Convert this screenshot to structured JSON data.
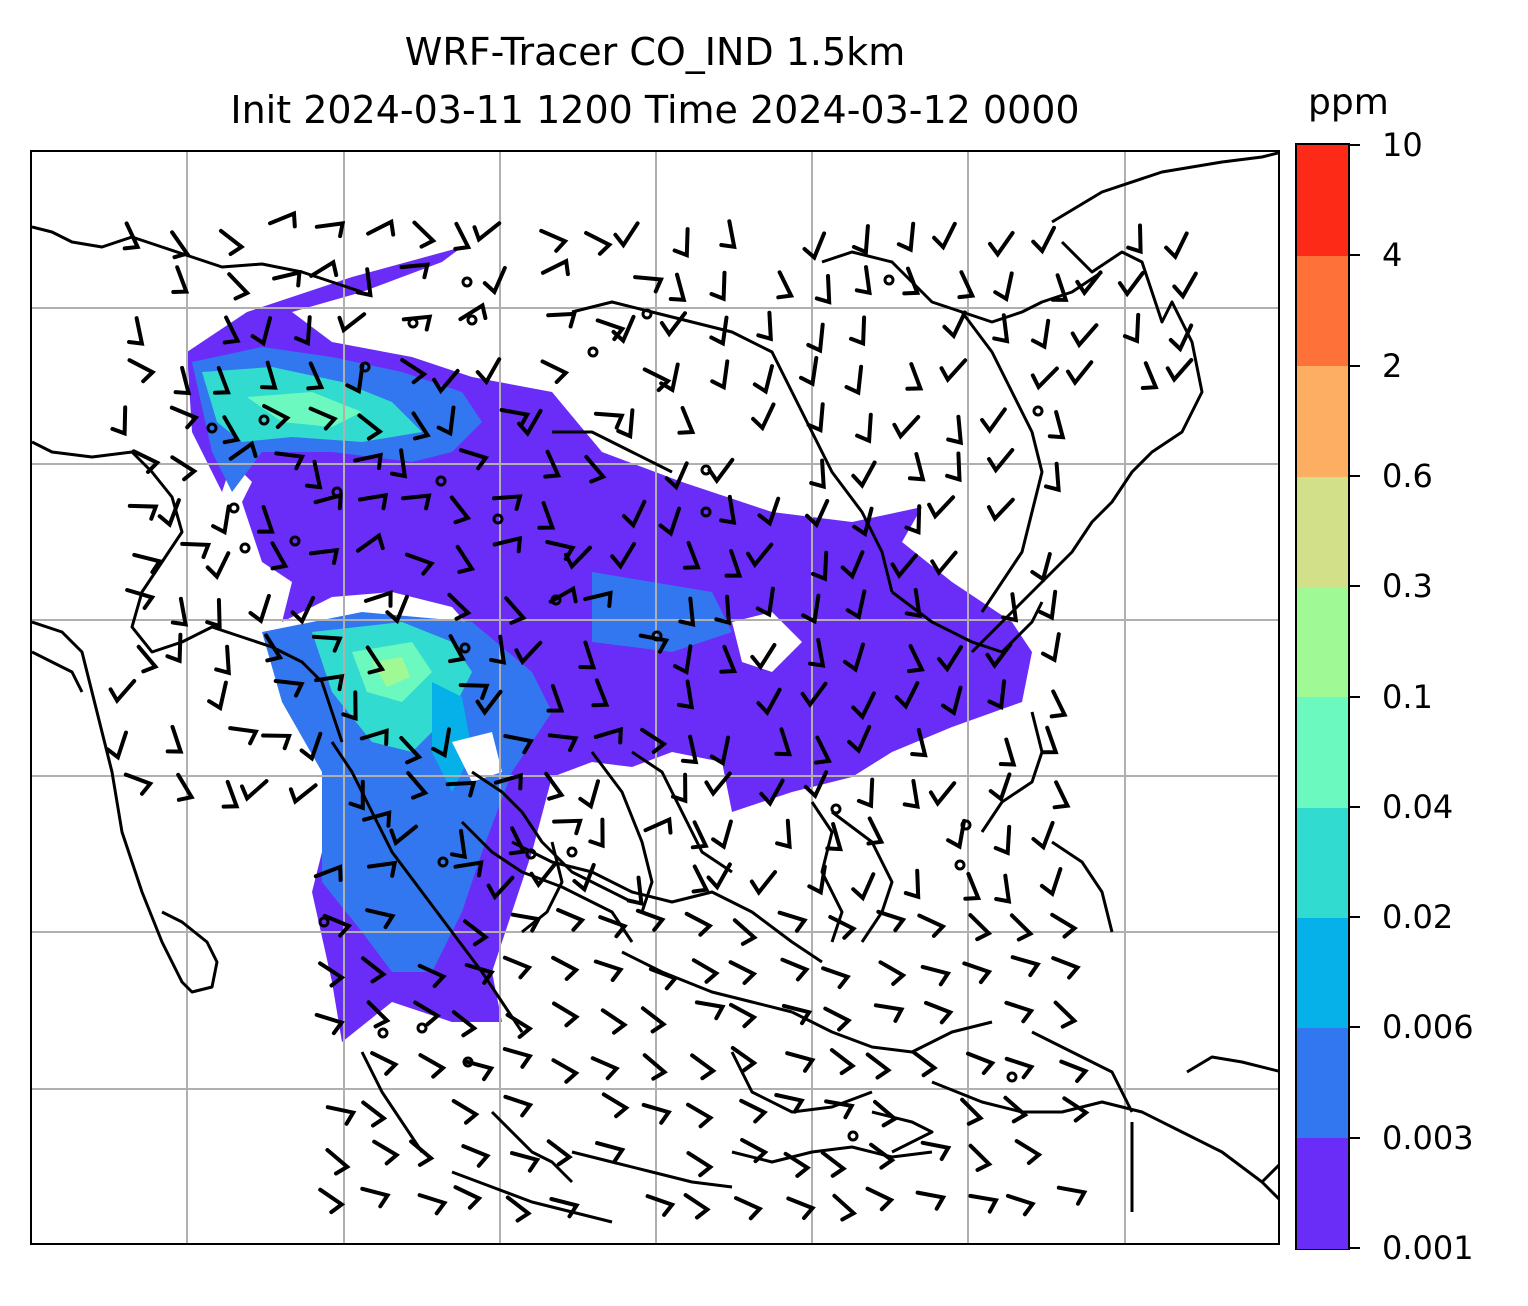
{
  "title": {
    "line1": "WRF-Tracer CO_IND 1.5km",
    "line2": "Init 2024-03-11 1200 Time 2024-03-12 0000"
  },
  "colorbar": {
    "unit": "ppm",
    "levels": [
      "0.001",
      "0.003",
      "0.006",
      "0.02",
      "0.04",
      "0.1",
      "0.3",
      "0.6",
      "2",
      "4",
      "10"
    ],
    "colors": [
      "#6a2cf7",
      "#3277f0",
      "#06b1ea",
      "#31dbd0",
      "#6cf9bf",
      "#9ffa96",
      "#d2e08a",
      "#fdae62",
      "#fe7139",
      "#fc2a17"
    ]
  },
  "map": {
    "gridlines": true,
    "symbols": [
      "coastline",
      "wind-barb",
      "calm-wind-circle",
      "tracer-shading"
    ]
  }
}
